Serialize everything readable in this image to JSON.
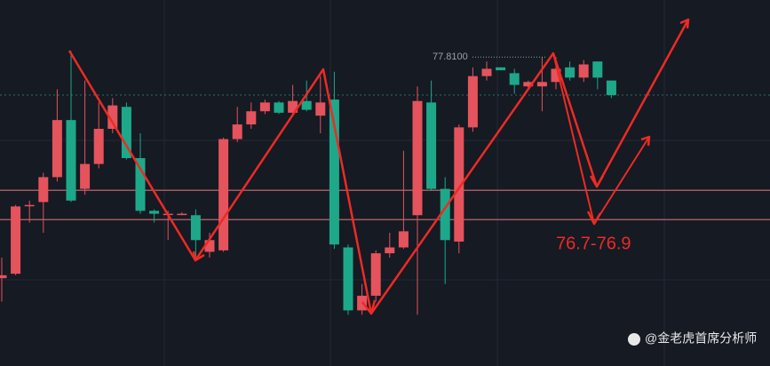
{
  "chart_data": {
    "type": "candlestick",
    "ylim": [
      75.7,
      78.2
    ],
    "up_color": "#e5535c",
    "down_color": "#1ea88a",
    "open": [
      76.3,
      76.33,
      76.8,
      76.82,
      76.99,
      77.38,
      76.91,
      77.08,
      77.32,
      77.47,
      77.12,
      76.76,
      76.74,
      76.74,
      76.73,
      76.48,
      76.49,
      77.25,
      77.35,
      77.44,
      77.5,
      77.43,
      77.51,
      77.41,
      77.52,
      76.51,
      76.08,
      76.18,
      76.47,
      76.51,
      76.73,
      77.5,
      76.91,
      76.55,
      77.33,
      77.68,
      77.74,
      77.7,
      77.61,
      77.61,
      77.64,
      77.74,
      77.67,
      77.78,
      77.65
    ],
    "high": [
      76.44,
      76.8,
      76.83,
      77.02,
      77.59,
      77.85,
      77.65,
      77.5,
      77.53,
      77.5,
      77.29,
      76.77,
      76.76,
      76.75,
      76.77,
      76.61,
      77.26,
      77.47,
      77.5,
      77.52,
      77.51,
      77.62,
      77.65,
      77.68,
      77.71,
      76.53,
      76.26,
      76.49,
      76.61,
      77.17,
      77.61,
      77.65,
      76.99,
      77.35,
      77.74,
      77.78,
      77.74,
      77.73,
      77.65,
      77.81,
      77.81,
      77.78,
      77.79,
      77.78,
      77.65
    ],
    "low": [
      76.14,
      76.32,
      76.68,
      76.61,
      76.96,
      76.82,
      76.87,
      77.05,
      77.29,
      77.11,
      76.74,
      76.68,
      76.56,
      76.73,
      76.44,
      76.44,
      76.48,
      77.23,
      77.32,
      77.42,
      77.42,
      77.41,
      77.44,
      77.29,
      76.5,
      76.05,
      76.05,
      76.14,
      76.44,
      76.5,
      76.05,
      76.9,
      76.26,
      76.47,
      77.3,
      77.65,
      77.72,
      77.56,
      77.6,
      77.44,
      77.59,
      77.65,
      77.64,
      77.59,
      77.53
    ],
    "close": [
      76.32,
      76.79,
      76.8,
      76.99,
      77.38,
      76.83,
      77.08,
      77.32,
      77.48,
      77.12,
      76.76,
      76.74,
      76.74,
      76.74,
      76.56,
      76.56,
      77.25,
      77.35,
      77.44,
      77.5,
      77.43,
      77.51,
      77.45,
      77.5,
      76.53,
      76.08,
      76.18,
      76.47,
      76.51,
      76.62,
      77.51,
      76.91,
      76.56,
      77.33,
      77.68,
      77.73,
      77.72,
      77.62,
      77.64,
      77.64,
      77.73,
      77.67,
      77.76,
      77.67,
      77.55
    ],
    "hlines": [
      76.9,
      76.7
    ],
    "high_label": {
      "value": 77.81,
      "label": "77.8100"
    },
    "annotation": "76.7-76.9",
    "watermark": "@金老虎首席分析师"
  }
}
